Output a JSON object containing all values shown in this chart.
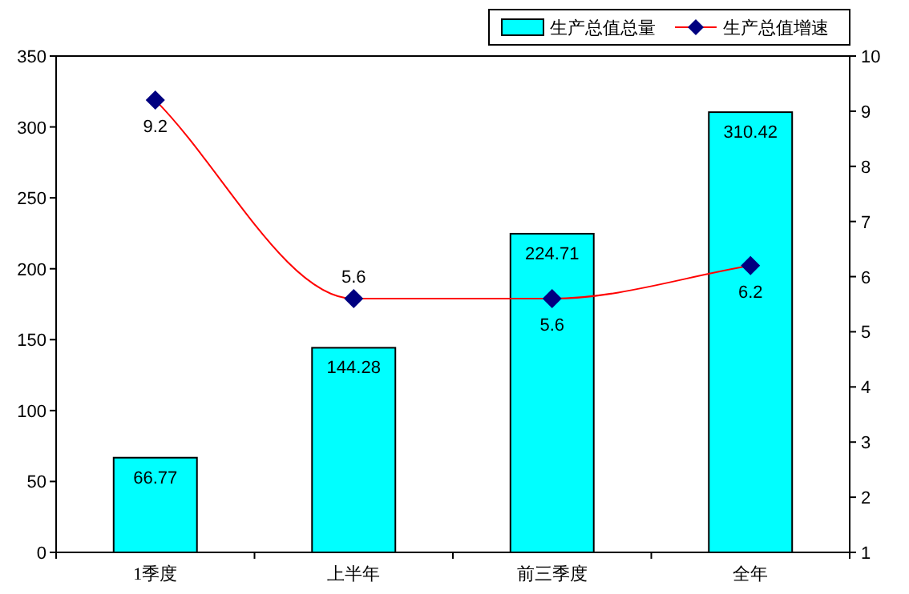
{
  "chart_data": {
    "type": "bar",
    "categories": [
      "1季度",
      "上半年",
      "前三季度",
      "全年"
    ],
    "ylim": [
      0,
      350
    ],
    "yticks": [
      0,
      50,
      100,
      150,
      200,
      250,
      300,
      350
    ],
    "y2lim": [
      1,
      10
    ],
    "y2ticks": [
      1,
      2,
      3,
      4,
      5,
      6,
      7,
      8,
      9,
      10
    ],
    "legend": "top right",
    "data_labels": true,
    "grid": false,
    "marker": "diamond",
    "series": [
      {
        "name": "生产总值总量",
        "color": "#00ffff",
        "values": [
          66.77,
          144.28,
          224.71,
          310.42
        ]
      },
      {
        "name": "生产总值增速",
        "type": "line",
        "axis": "y2",
        "color": "#ff0000",
        "colors": [
          "#000080",
          "#000080",
          "#000080",
          "#000080"
        ],
        "values": [
          9.2,
          5.6,
          5.6,
          6.2
        ]
      }
    ]
  }
}
